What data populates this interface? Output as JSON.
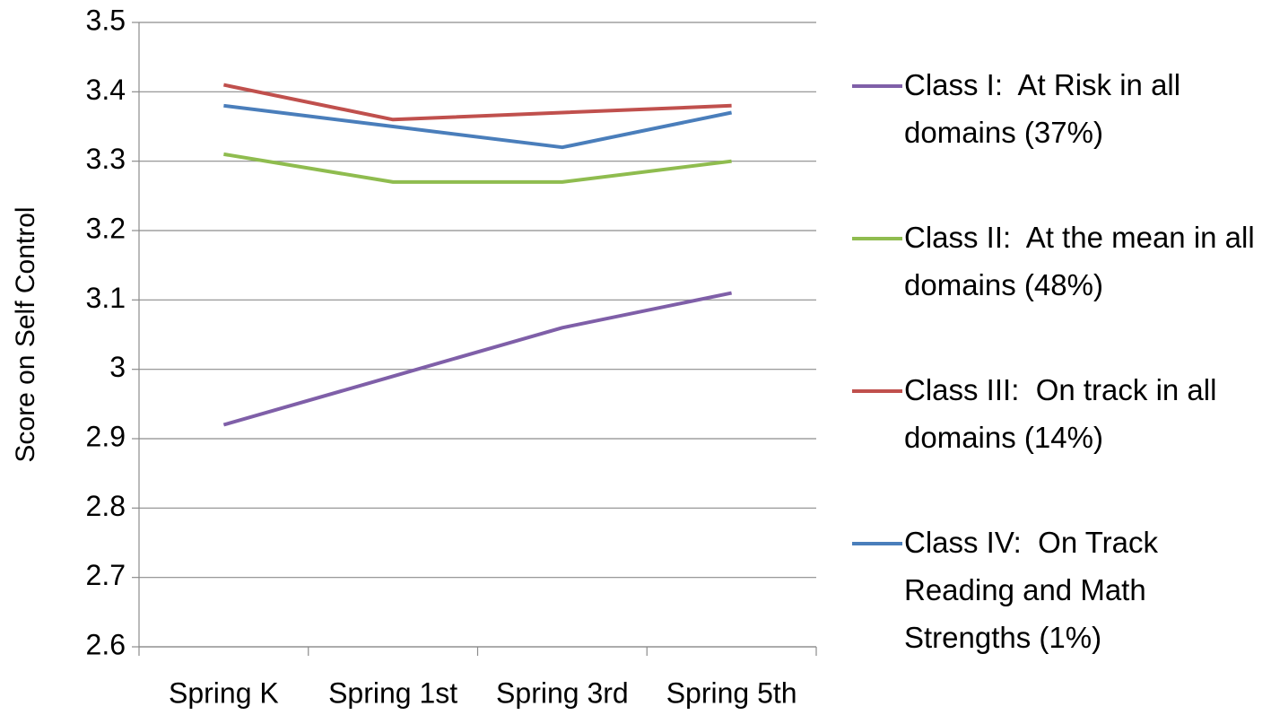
{
  "chart_data": {
    "type": "line",
    "ylabel": "Score on Self Control",
    "categories": [
      "Spring K",
      "Spring 1st",
      "Spring 3rd",
      "Spring 5th"
    ],
    "series": [
      {
        "name": "Class I:  At Risk in all domains (37%)",
        "color": "#7f5fa8",
        "values": [
          2.92,
          2.99,
          3.06,
          3.11
        ]
      },
      {
        "name": "Class II:  At the mean in all domains (48%)",
        "color": "#8fbc4f",
        "values": [
          3.31,
          3.27,
          3.27,
          3.3
        ]
      },
      {
        "name": "Class III:  On track in all domains (14%)",
        "color": "#c0504d",
        "values": [
          3.41,
          3.36,
          3.37,
          3.38
        ]
      },
      {
        "name": "Class IV:  On Track Reading and Math Strengths (1%)",
        "color": "#4a7ebb",
        "values": [
          3.38,
          3.35,
          3.32,
          3.37
        ]
      }
    ],
    "ylim": [
      2.6,
      3.5
    ],
    "yticks": [
      2.6,
      2.7,
      2.8,
      2.9,
      3,
      3.1,
      3.2,
      3.3,
      3.4,
      3.5
    ],
    "grid": true,
    "legend": "right"
  }
}
